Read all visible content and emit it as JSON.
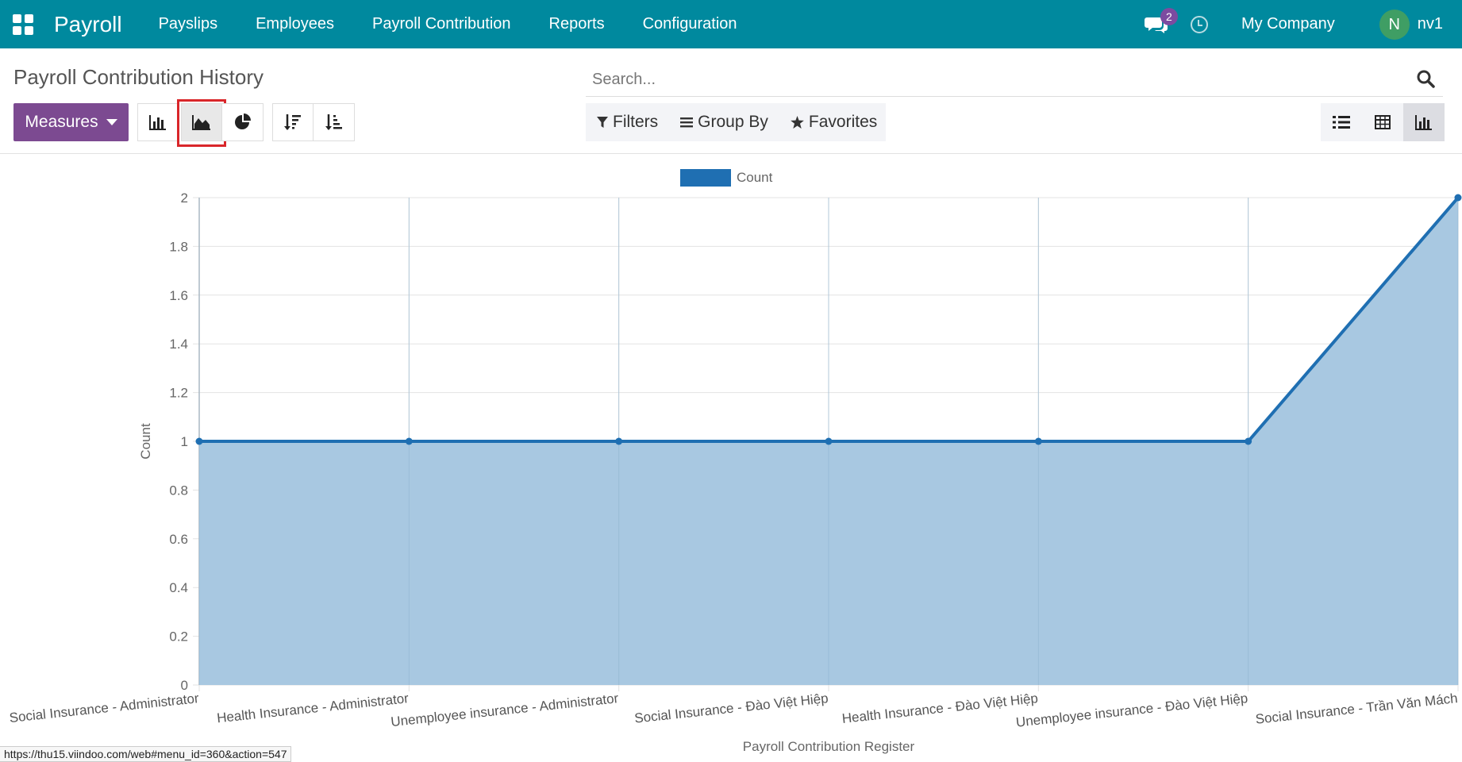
{
  "navbar": {
    "app_name": "Payroll",
    "menu": [
      "Payslips",
      "Employees",
      "Payroll Contribution",
      "Reports",
      "Configuration"
    ],
    "message_count": "2",
    "company": "My Company",
    "avatar_letter": "N",
    "user": "nv1"
  },
  "control_panel": {
    "title": "Payroll Contribution History",
    "search_placeholder": "Search...",
    "measures_label": "Measures",
    "filters_label": "Filters",
    "group_by_label": "Group By",
    "favorites_label": "Favorites",
    "active_chart_mode": "line"
  },
  "chart_data": {
    "type": "area",
    "categories": [
      "Social Insurance - Administrator",
      "Health Insurance - Administrator",
      "Unemployee insurance - Administrator",
      "Social Insurance - Đào Việt Hiệp",
      "Health Insurance - Đào Việt Hiệp",
      "Unemployee insurance - Đào Việt Hiệp",
      "Social Insurance - Trần Văn Mách"
    ],
    "series": [
      {
        "name": "Count",
        "values": [
          1,
          1,
          1,
          1,
          1,
          1,
          2
        ]
      }
    ],
    "xlabel": "Payroll Contribution Register",
    "ylabel": "Count",
    "ylim": [
      0,
      2
    ],
    "yticks": [
      "0",
      "0.2",
      "0.4",
      "0.6",
      "0.8",
      "1",
      "1.2",
      "1.4",
      "1.6",
      "1.8",
      "2"
    ],
    "grid": true,
    "legend": "top",
    "colors": {
      "line": "#1f6fb2",
      "fill": "#a6c7e0",
      "legend": "#1f6fb2"
    }
  },
  "status_bar": {
    "url": "https://thu15.viindoo.com/web#menu_id=360&action=547"
  }
}
